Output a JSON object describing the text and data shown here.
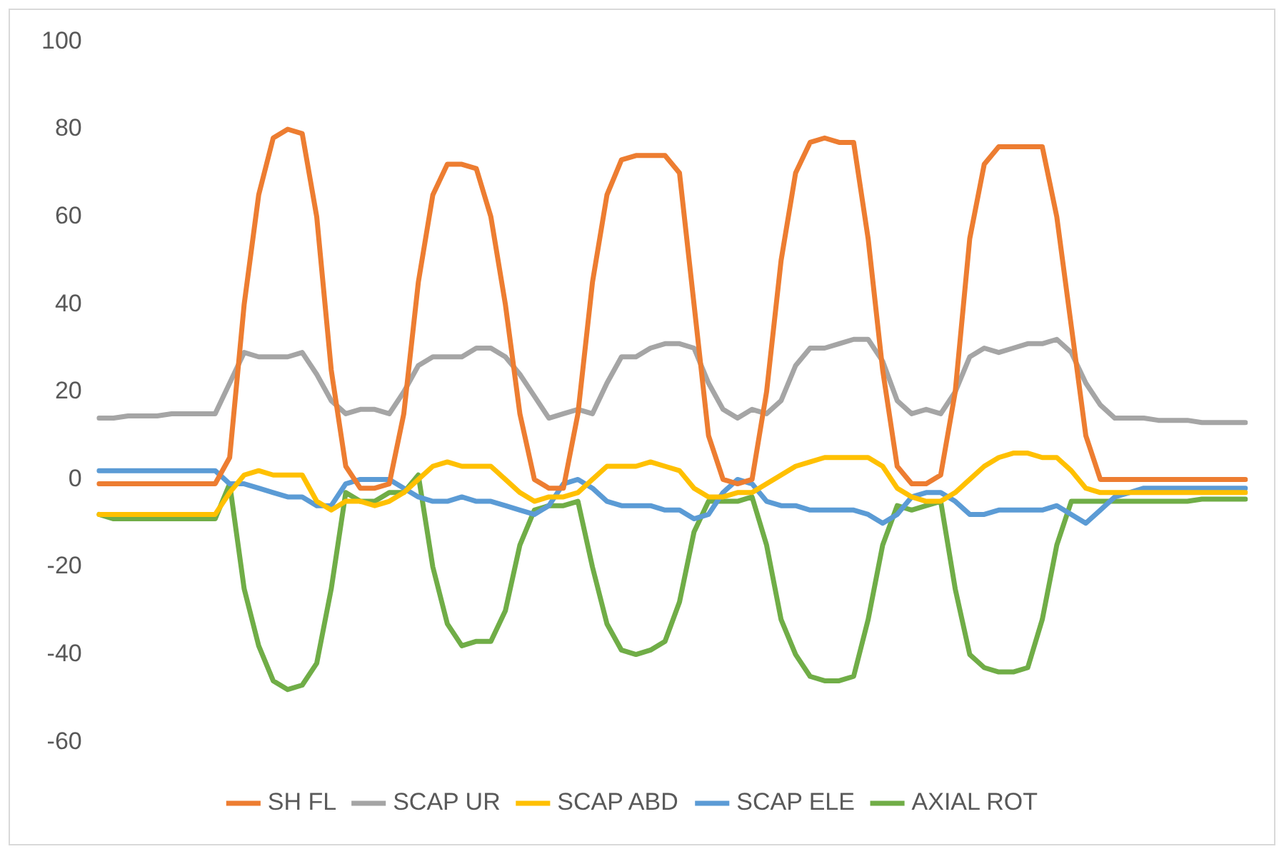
{
  "chart_data": {
    "type": "line",
    "categories": [
      null,
      null,
      null,
      null,
      null,
      null,
      null,
      null,
      null,
      null,
      null,
      null,
      null,
      null,
      null,
      null,
      null,
      null,
      null,
      null,
      null,
      null,
      null,
      null,
      null,
      null,
      null,
      null,
      null,
      null,
      null,
      null,
      null,
      null,
      null,
      null,
      null,
      null,
      null,
      null,
      null,
      null,
      null,
      null,
      null,
      null,
      null,
      null,
      null,
      null,
      null,
      null,
      null,
      null,
      null,
      null,
      null,
      null,
      null,
      null,
      null,
      null,
      null,
      null,
      null,
      null,
      null,
      null,
      null,
      null,
      null,
      null,
      null,
      null,
      null,
      null,
      null,
      null,
      null,
      null
    ],
    "ylim": [
      -60,
      100
    ],
    "yticks": [
      -60,
      -40,
      -20,
      0,
      20,
      40,
      60,
      80,
      100
    ],
    "grid": false,
    "legend": "bottom",
    "marker": "none",
    "line_style": "solid",
    "series": [
      {
        "name": "SH FL",
        "color": "#ed7d31",
        "values": [
          -1,
          -1,
          -1,
          -1,
          -1,
          -1,
          -1,
          -1,
          -1,
          5,
          40,
          65,
          78,
          80,
          79,
          60,
          25,
          3,
          -2,
          -2,
          -1,
          15,
          45,
          65,
          72,
          72,
          71,
          60,
          40,
          15,
          0,
          -2,
          -2,
          15,
          45,
          65,
          73,
          74,
          74,
          74,
          70,
          40,
          10,
          0,
          -1,
          0,
          20,
          50,
          70,
          77,
          78,
          77,
          77,
          55,
          25,
          3,
          -1,
          -1,
          1,
          20,
          55,
          72,
          76,
          76,
          76,
          76,
          60,
          35,
          10,
          0,
          0,
          0,
          0,
          0,
          0,
          0,
          0,
          0,
          0,
          0
        ]
      },
      {
        "name": "SCAP UR",
        "color": "#a5a5a5",
        "values": [
          14,
          14,
          14.5,
          14.5,
          14.5,
          15,
          15,
          15,
          15,
          22,
          29,
          28,
          28,
          28,
          29,
          24,
          18,
          15,
          16,
          16,
          15,
          20,
          26,
          28,
          28,
          28,
          30,
          30,
          28,
          24,
          19,
          14,
          15,
          16,
          15,
          22,
          28,
          28,
          30,
          31,
          31,
          30,
          22,
          16,
          14,
          16,
          15,
          18,
          26,
          30,
          30,
          31,
          32,
          32,
          27,
          18,
          15,
          16,
          15,
          20,
          28,
          30,
          29,
          30,
          31,
          31,
          32,
          29,
          22,
          17,
          14,
          14,
          14,
          13.5,
          13.5,
          13.5,
          13,
          13,
          13,
          13
        ]
      },
      {
        "name": "SCAP ABD",
        "color": "#ffc000",
        "values": [
          -8,
          -8,
          -8,
          -8,
          -8,
          -8,
          -8,
          -8,
          -8,
          -3,
          1,
          2,
          1,
          1,
          1,
          -5,
          -7,
          -5,
          -5,
          -6,
          -5,
          -3,
          0,
          3,
          4,
          3,
          3,
          3,
          0,
          -3,
          -5,
          -4,
          -4,
          -3,
          0,
          3,
          3,
          3,
          4,
          3,
          2,
          -2,
          -4,
          -4,
          -3,
          -3,
          -1,
          1,
          3,
          4,
          5,
          5,
          5,
          5,
          3,
          -2,
          -4,
          -5,
          -5,
          -3,
          0,
          3,
          5,
          6,
          6,
          5,
          5,
          2,
          -2,
          -3,
          -3,
          -3,
          -3,
          -3,
          -3,
          -3,
          -3,
          -3,
          -3,
          -3
        ]
      },
      {
        "name": "SCAP ELE",
        "color": "#5b9bd5",
        "values": [
          2,
          2,
          2,
          2,
          2,
          2,
          2,
          2,
          2,
          -1,
          -1,
          -2,
          -3,
          -4,
          -4,
          -6,
          -6,
          -1,
          0,
          0,
          0,
          -2,
          -4,
          -5,
          -5,
          -4,
          -5,
          -5,
          -6,
          -7,
          -8,
          -6,
          -1,
          0,
          -2,
          -5,
          -6,
          -6,
          -6,
          -7,
          -7,
          -9,
          -8,
          -3,
          0,
          -1,
          -5,
          -6,
          -6,
          -7,
          -7,
          -7,
          -7,
          -8,
          -10,
          -8,
          -4,
          -3,
          -3,
          -5,
          -8,
          -8,
          -7,
          -7,
          -7,
          -7,
          -6,
          -8,
          -10,
          -7,
          -4,
          -3,
          -2,
          -2,
          -2,
          -2,
          -2,
          -2,
          -2,
          -2
        ]
      },
      {
        "name": "AXIAL ROT",
        "color": "#70ad47",
        "values": [
          -8,
          -9,
          -9,
          -9,
          -9,
          -9,
          -9,
          -9,
          -9,
          -1,
          -25,
          -38,
          -46,
          -48,
          -47,
          -42,
          -25,
          -3,
          -5,
          -5,
          -3,
          -3,
          1,
          -20,
          -33,
          -38,
          -37,
          -37,
          -30,
          -15,
          -7,
          -6,
          -6,
          -5,
          -20,
          -33,
          -39,
          -40,
          -39,
          -37,
          -28,
          -12,
          -5,
          -5,
          -5,
          -4,
          -15,
          -32,
          -40,
          -45,
          -46,
          -46,
          -45,
          -32,
          -15,
          -6,
          -7,
          -6,
          -5,
          -25,
          -40,
          -43,
          -44,
          -44,
          -43,
          -32,
          -15,
          -5,
          -5,
          -5,
          -5,
          -5,
          -5,
          -5,
          -5,
          -5,
          -4.5,
          -4.5,
          -4.5,
          -4.5
        ]
      }
    ]
  }
}
